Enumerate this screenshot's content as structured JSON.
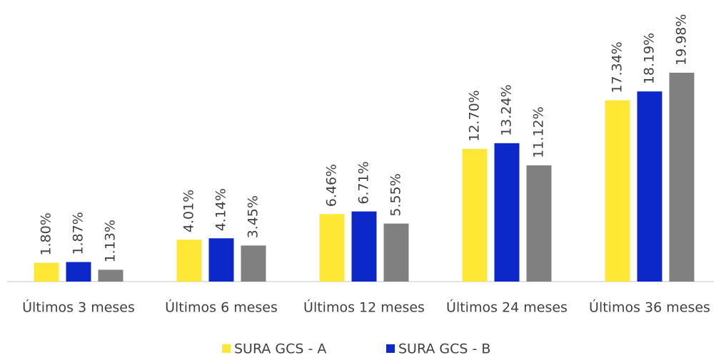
{
  "chart_data": {
    "type": "bar",
    "categories": [
      "Últimos 3 meses",
      "Últimos 6 meses",
      "Últimos 12 meses",
      "Últimos 24 meses",
      "Últimos 36 meses"
    ],
    "series": [
      {
        "name": "SURA GCS - A",
        "color": "#ffe835",
        "values": [
          1.8,
          4.01,
          6.46,
          12.7,
          17.34
        ],
        "value_labels": [
          "1.80%",
          "4.01%",
          "6.46%",
          "12.70%",
          "17.34%"
        ]
      },
      {
        "name": "SURA GCS - B",
        "color": "#0d28c8",
        "values": [
          1.87,
          4.14,
          6.71,
          13.24,
          18.19
        ],
        "value_labels": [
          "1.87%",
          "4.14%",
          "6.71%",
          "13.24%",
          "18.19%"
        ]
      },
      {
        "color": "#808080",
        "values": [
          1.13,
          3.45,
          5.55,
          11.12,
          19.98
        ],
        "value_labels": [
          "1.13%",
          "3.45%",
          "5.55%",
          "11.12%",
          "19.98%"
        ]
      }
    ]
  }
}
